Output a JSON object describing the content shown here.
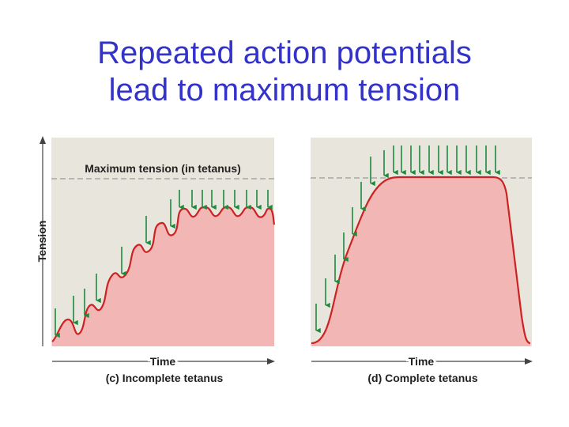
{
  "title": {
    "line1": "Repeated action potentials",
    "line2": "lead to maximum tension"
  },
  "figure": {
    "y_axis_label": "Tension",
    "max_line_label": "Maximum tension (in tetanus)",
    "panels": [
      {
        "x_axis_label": "Time",
        "caption": "(c) Incomplete tetanus",
        "stimulus_count": 16
      },
      {
        "x_axis_label": "Time",
        "caption": "(d) Complete tetanus",
        "stimulus_count": 22
      }
    ],
    "colors": {
      "panel_background": "#e8e6dc",
      "fill": "#f2b6b4",
      "curve": "#cc2222",
      "arrow": "#1e8a3c",
      "dashed_line": "#999999",
      "axis": "#444444"
    }
  }
}
